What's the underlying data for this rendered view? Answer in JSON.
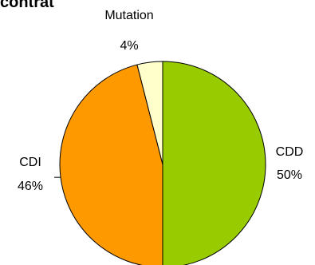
{
  "title": "contrat",
  "chart_data": {
    "type": "pie",
    "title": "contrat",
    "slices": [
      {
        "label": "CDD",
        "value": 50,
        "value_label": "50%",
        "color": "#99cc00"
      },
      {
        "label": "CDI",
        "value": 46,
        "value_label": "46%",
        "color": "#ff9900"
      },
      {
        "label": "Mutation",
        "value": 4,
        "value_label": "4%",
        "color": "#ffffcc"
      }
    ],
    "legend": "none",
    "edge_color": "#000000"
  }
}
